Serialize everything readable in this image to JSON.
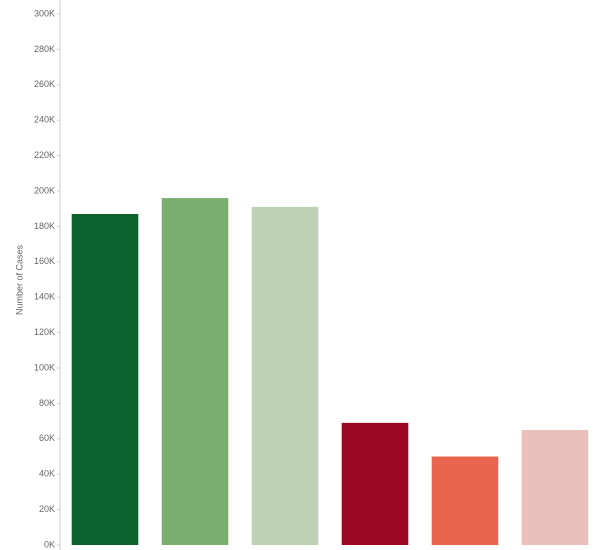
{
  "chart_data": {
    "type": "bar",
    "y_label": "Number of Cases",
    "categories": [
      null,
      null,
      null,
      null,
      null,
      null
    ],
    "values": [
      187000,
      196000,
      191000,
      69000,
      50000,
      65000
    ],
    "colors": [
      "#0b622d",
      "#7aae6e",
      "#bdd1b5",
      "#9c0824",
      "#e8644f",
      "#e9c0ba"
    ],
    "ylim": [
      0,
      300000
    ],
    "yticks": [
      {
        "value": 0,
        "label": "0K"
      },
      {
        "value": 20000,
        "label": "20K"
      },
      {
        "value": 40000,
        "label": "40K"
      },
      {
        "value": 60000,
        "label": "60K"
      },
      {
        "value": 80000,
        "label": "80K"
      },
      {
        "value": 100000,
        "label": "100K"
      },
      {
        "value": 120000,
        "label": "120K"
      },
      {
        "value": 140000,
        "label": "140K"
      },
      {
        "value": 160000,
        "label": "160K"
      },
      {
        "value": 180000,
        "label": "180K"
      },
      {
        "value": 200000,
        "label": "200K"
      },
      {
        "value": 220000,
        "label": "220K"
      },
      {
        "value": 240000,
        "label": "240K"
      },
      {
        "value": 260000,
        "label": "260K"
      },
      {
        "value": 280000,
        "label": "280K"
      },
      {
        "value": 300000,
        "label": "300K"
      }
    ],
    "grid": false
  }
}
